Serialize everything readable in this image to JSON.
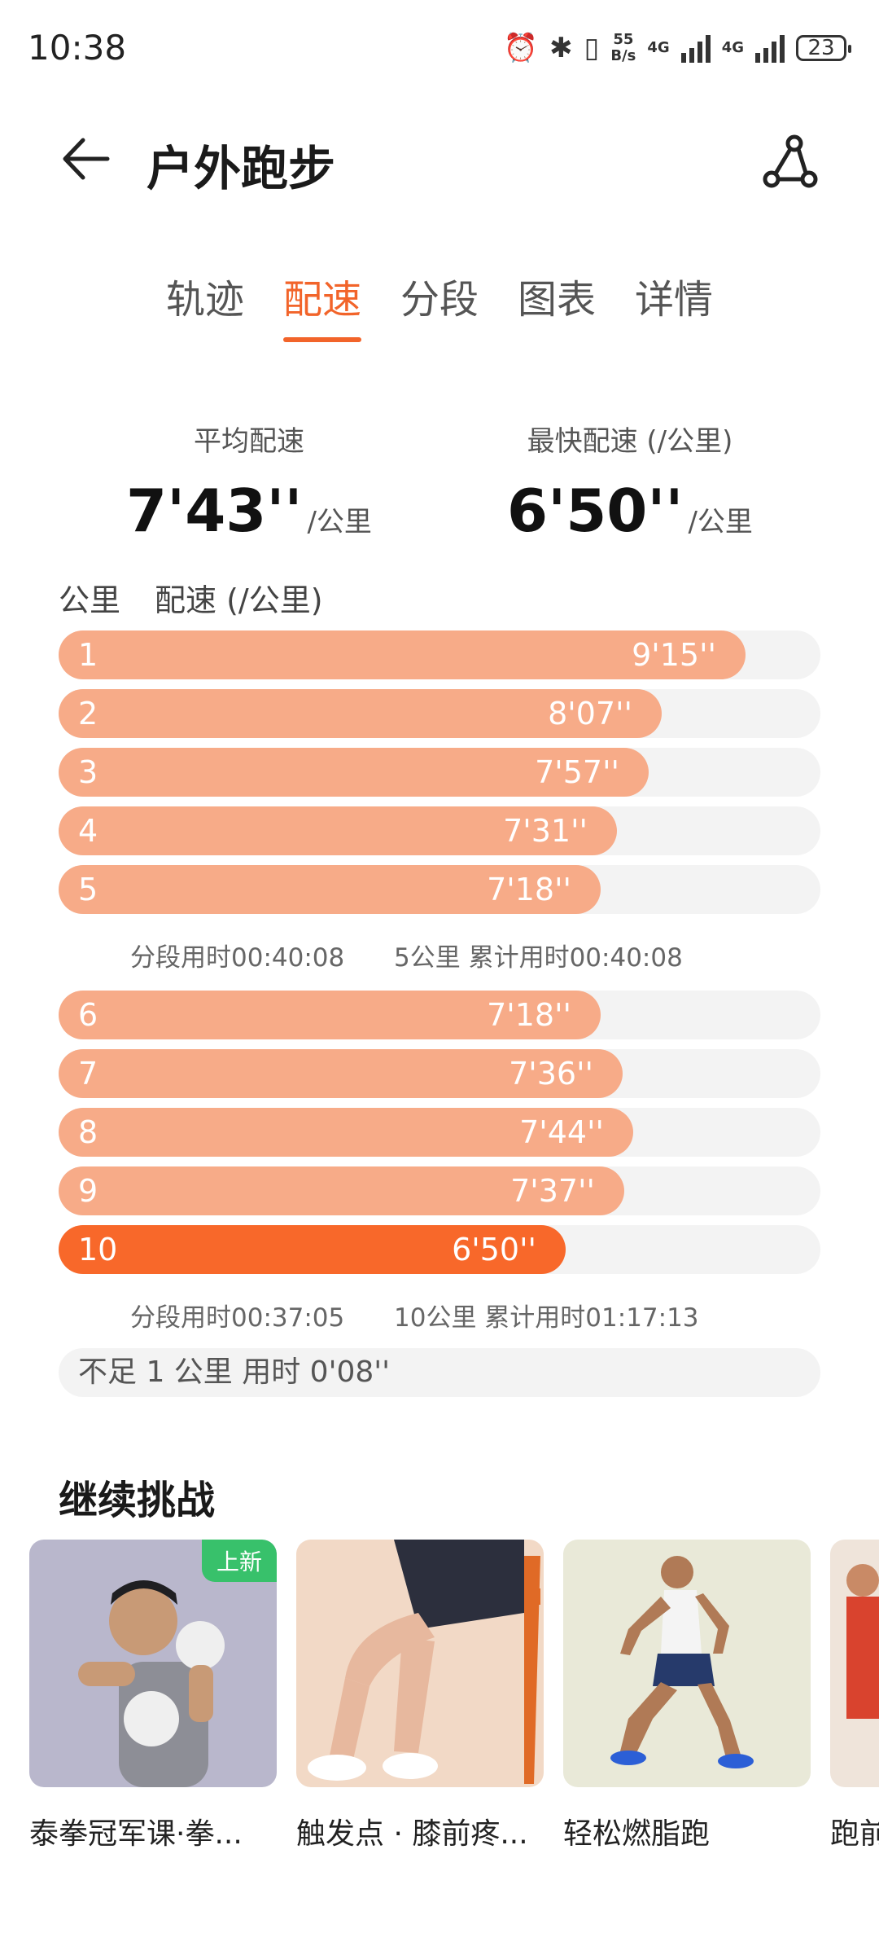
{
  "status": {
    "time": "10:38",
    "net_speed_top": "55",
    "net_speed_bottom": "B/s",
    "net1": "4G",
    "net2": "4G",
    "battery": "23"
  },
  "header": {
    "title": "户外跑步"
  },
  "tabs": [
    {
      "label": "轨迹"
    },
    {
      "label": "配速"
    },
    {
      "label": "分段"
    },
    {
      "label": "图表"
    },
    {
      "label": "详情"
    }
  ],
  "active_tab_index": 1,
  "summary": {
    "avg": {
      "label": "平均配速",
      "value": "7'43''",
      "unit": "/公里"
    },
    "fastest": {
      "label": "最快配速 (/公里)",
      "value": "6'50''",
      "unit": "/公里"
    }
  },
  "table": {
    "col_km": "公里",
    "col_pace": "配速 (/公里)",
    "rows": [
      {
        "km": "1",
        "pace": "9'15''",
        "seconds": 555
      },
      {
        "km": "2",
        "pace": "8'07''",
        "seconds": 487
      },
      {
        "km": "3",
        "pace": "7'57''",
        "seconds": 477
      },
      {
        "km": "4",
        "pace": "7'31''",
        "seconds": 451
      },
      {
        "km": "5",
        "pace": "7'18''",
        "seconds": 438
      },
      {
        "km": "6",
        "pace": "7'18''",
        "seconds": 438
      },
      {
        "km": "7",
        "pace": "7'36''",
        "seconds": 456
      },
      {
        "km": "8",
        "pace": "7'44''",
        "seconds": 464
      },
      {
        "km": "9",
        "pace": "7'37''",
        "seconds": 457
      },
      {
        "km": "10",
        "pace": "6'50''",
        "seconds": 410,
        "fastest": true
      }
    ],
    "segments": [
      {
        "split": "分段用时00:40:08",
        "total": "5公里 累计用时00:40:08"
      },
      {
        "split": "分段用时00:37:05",
        "total": "10公里 累计用时01:17:13"
      }
    ],
    "leftover": "不足 1 公里 用时 0'08''"
  },
  "challenge": {
    "title": "继续挑战",
    "cards": [
      {
        "name": "泰拳冠军课·拳...",
        "badge": "上新"
      },
      {
        "name": "触发点 · 膝前疼...",
        "badge": ""
      },
      {
        "name": "轻松燃脂跑",
        "badge": ""
      },
      {
        "name": "跑前",
        "badge": ""
      }
    ]
  },
  "colors": {
    "accent": "#f2642a",
    "bar": "#f7ab88",
    "bar_fast": "#f8682a",
    "track": "#f3f3f3",
    "badge": "#38c16b"
  }
}
